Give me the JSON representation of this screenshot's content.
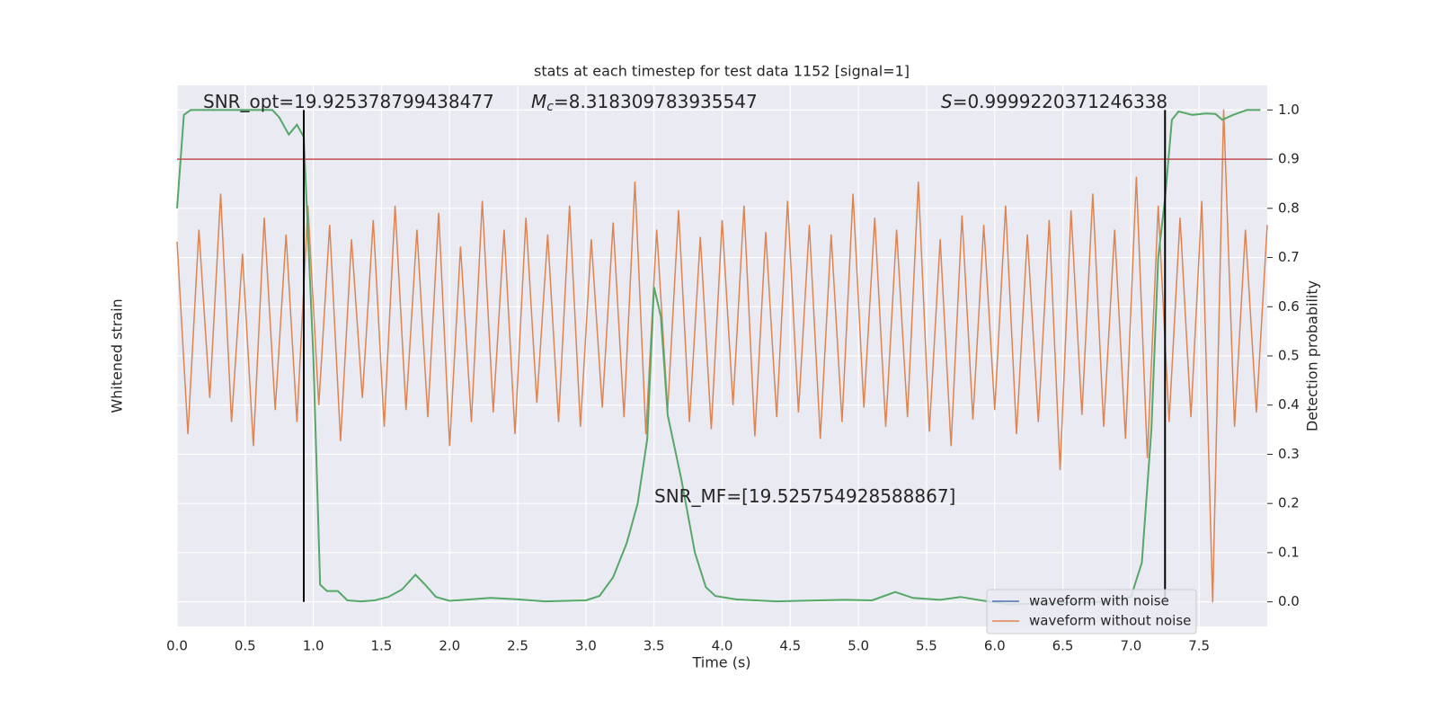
{
  "chart_data": {
    "type": "line",
    "title": "stats at each timestep for test data 1152 [signal=1]",
    "xlabel": "Time (s)",
    "ylabel": "Whitened strain",
    "y2label": "Detection probability",
    "xlim": [
      0,
      8
    ],
    "xticks": [
      {
        "value": 0,
        "label": "0.0"
      },
      0.5,
      {
        "value": 1,
        "label": "1.0"
      },
      1.5,
      {
        "value": 2,
        "label": "2.0"
      },
      2.5,
      {
        "value": 3,
        "label": "3.0"
      },
      3.5,
      {
        "value": 4,
        "label": "4.0"
      },
      4.5,
      {
        "value": 5,
        "label": "5.0"
      },
      5.5,
      {
        "value": 6,
        "label": "6.0"
      },
      6.5,
      {
        "value": 7,
        "label": "7.0"
      },
      7.5
    ],
    "ylim": [
      -1.25,
      1.0
    ],
    "y2lim": [
      -0.05,
      1.05
    ],
    "y2ticks": [
      {
        "value": 0,
        "label": "0.0"
      },
      0.1,
      0.2,
      0.3,
      0.4,
      0.5,
      0.6,
      0.7,
      0.8,
      0.9,
      {
        "value": 1,
        "label": "1.0"
      }
    ],
    "grid": true,
    "series": [
      {
        "color": "#dd8452",
        "axis": "y",
        "x": [
          0,
          0.08,
          0.16,
          0.24,
          0.32,
          0.4,
          0.48,
          0.56,
          0.64,
          0.72,
          0.8,
          0.88,
          0.96,
          1.04,
          1.12,
          1.2,
          1.28,
          1.36,
          1.44,
          1.52,
          1.6,
          1.68,
          1.76,
          1.84,
          1.92,
          2.0,
          2.08,
          2.16,
          2.24,
          2.32,
          2.4,
          2.48,
          2.56,
          2.64,
          2.72,
          2.8,
          2.88,
          2.96,
          3.04,
          3.12,
          3.2,
          3.28,
          3.36,
          3.44,
          3.52,
          3.6,
          3.68,
          3.76,
          3.84,
          3.92,
          4.0,
          4.08,
          4.16,
          4.24,
          4.32,
          4.4,
          4.48,
          4.56,
          4.64,
          4.72,
          4.8,
          4.88,
          4.96,
          5.04,
          5.12,
          5.2,
          5.28,
          5.36,
          5.44,
          5.52,
          5.6,
          5.68,
          5.76,
          5.84,
          5.92,
          6.0,
          6.08,
          6.16,
          6.24,
          6.32,
          6.4,
          6.48,
          6.56,
          6.64,
          6.72,
          6.8,
          6.88,
          6.96,
          7.04,
          7.12,
          7.2,
          7.28,
          7.36,
          7.44,
          7.52,
          7.6,
          7.68,
          7.76,
          7.84,
          7.92,
          8.0
        ],
        "values": [
          0.35,
          -0.45,
          0.4,
          -0.3,
          0.55,
          -0.4,
          0.3,
          -0.5,
          0.45,
          -0.35,
          0.38,
          -0.4,
          0.5,
          -0.33,
          0.42,
          -0.48,
          0.36,
          -0.3,
          0.44,
          -0.42,
          0.5,
          -0.35,
          0.4,
          -0.38,
          0.47,
          -0.5,
          0.33,
          -0.4,
          0.52,
          -0.36,
          0.4,
          -0.45,
          0.45,
          -0.32,
          0.38,
          -0.4,
          0.5,
          -0.42,
          0.36,
          -0.34,
          0.43,
          -0.38,
          0.6,
          -0.45,
          0.4,
          -0.35,
          0.48,
          -0.4,
          0.37,
          -0.43,
          0.44,
          -0.33,
          0.5,
          -0.46,
          0.39,
          -0.38,
          0.52,
          -0.36,
          0.42,
          -0.47,
          0.38,
          -0.4,
          0.55,
          -0.34,
          0.45,
          -0.42,
          0.4,
          -0.38,
          0.6,
          -0.44,
          0.36,
          -0.5,
          0.46,
          -0.39,
          0.42,
          -0.35,
          0.5,
          -0.45,
          0.38,
          -0.4,
          0.44,
          -0.6,
          0.48,
          -0.37,
          0.55,
          -0.42,
          0.4,
          -0.47,
          0.62,
          -0.55,
          0.5,
          -0.4,
          0.45,
          -0.38,
          0.52,
          -1.15,
          0.9,
          -0.42,
          0.4,
          -0.36,
          0.42
        ]
      },
      {
        "color": "#55a868",
        "axis": "y2",
        "x": [
          0,
          0.05,
          0.1,
          0.5,
          0.7,
          0.75,
          0.82,
          0.88,
          0.93,
          1.0,
          1.05,
          1.1,
          1.18,
          1.25,
          1.35,
          1.45,
          1.55,
          1.65,
          1.75,
          1.82,
          1.9,
          2.0,
          2.3,
          2.5,
          2.7,
          3.0,
          3.1,
          3.2,
          3.3,
          3.38,
          3.45,
          3.5,
          3.55,
          3.6,
          3.7,
          3.8,
          3.88,
          3.95,
          4.1,
          4.4,
          4.9,
          5.1,
          5.2,
          5.27,
          5.4,
          5.6,
          5.75,
          5.9,
          6.1,
          6.8,
          7.0,
          7.08,
          7.15,
          7.2,
          7.25,
          7.3,
          7.35,
          7.45,
          7.55,
          7.62,
          7.67,
          7.75,
          7.85,
          7.95
        ],
        "values": [
          0.8,
          0.99,
          1.0,
          1.0,
          1.0,
          0.985,
          0.95,
          0.97,
          0.945,
          0.5,
          0.035,
          0.022,
          0.022,
          0.003,
          0.001,
          0.003,
          0.01,
          0.025,
          0.055,
          0.035,
          0.01,
          0.002,
          0.008,
          0.005,
          0.001,
          0.003,
          0.012,
          0.05,
          0.12,
          0.2,
          0.33,
          0.64,
          0.58,
          0.38,
          0.25,
          0.1,
          0.03,
          0.012,
          0.005,
          0.001,
          0.004,
          0.003,
          0.013,
          0.02,
          0.008,
          0.004,
          0.01,
          0.003,
          -0.005,
          0.0,
          0.01,
          0.08,
          0.35,
          0.7,
          0.82,
          0.98,
          0.997,
          0.99,
          0.993,
          0.992,
          0.98,
          0.99,
          1.0,
          1.0
        ]
      }
    ],
    "hlines": [
      {
        "value": 0.9,
        "color": "#c44e52",
        "axis": "y2"
      }
    ],
    "vlines": [
      {
        "value": 0.93,
        "color": "#000000"
      },
      {
        "value": 7.25,
        "color": "#000000"
      }
    ],
    "annotations": [
      {
        "text": "SNR_opt=19.925378799438477"
      },
      {
        "symbol": "M",
        "sub": "c",
        "text": "=8.318309783935547"
      },
      {
        "symbol": "S",
        "text": "=0.9999220371246338"
      },
      {
        "text": "SNR_MF=[19.525754928588867]"
      }
    ],
    "legend": [
      {
        "name": "waveform with noise",
        "color": "#4c72b0"
      },
      {
        "name": "waveform without noise",
        "color": "#dd8452"
      }
    ],
    "legend_position": "lower right"
  }
}
